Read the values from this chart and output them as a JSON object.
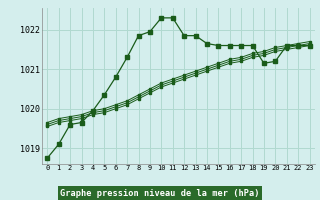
{
  "background_color": "#d4eeed",
  "grid_color": "#b0d9d0",
  "line_color": "#1a5c1a",
  "title": "Graphe pression niveau de la mer (hPa)",
  "title_bg": "#2d7a2d",
  "title_fg": "#ffffff",
  "xlim": [
    -0.5,
    23.5
  ],
  "ylim": [
    1018.6,
    1022.55
  ],
  "yticks": [
    1019,
    1020,
    1021,
    1022
  ],
  "xticks": [
    0,
    1,
    2,
    3,
    4,
    5,
    6,
    7,
    8,
    9,
    10,
    11,
    12,
    13,
    14,
    15,
    16,
    17,
    18,
    19,
    20,
    21,
    22,
    23
  ],
  "series": [
    [
      1018.75,
      1019.1,
      1019.6,
      1019.65,
      1019.95,
      1020.35,
      1020.8,
      1021.3,
      1021.85,
      1021.95,
      1022.3,
      1022.3,
      1021.85,
      1021.85,
      1021.65,
      1021.6,
      1021.6,
      1021.6,
      1021.6,
      1021.15,
      1021.2,
      1021.6,
      1021.6,
      1021.6
    ],
    [
      1019.55,
      1019.65,
      1019.7,
      1019.75,
      1019.85,
      1019.9,
      1020.0,
      1020.1,
      1020.25,
      1020.4,
      1020.55,
      1020.65,
      1020.75,
      1020.85,
      1020.95,
      1021.05,
      1021.15,
      1021.2,
      1021.3,
      1021.35,
      1021.45,
      1021.5,
      1021.55,
      1021.6
    ],
    [
      1019.6,
      1019.7,
      1019.75,
      1019.8,
      1019.9,
      1019.95,
      1020.05,
      1020.15,
      1020.3,
      1020.45,
      1020.6,
      1020.7,
      1020.8,
      1020.9,
      1021.0,
      1021.1,
      1021.2,
      1021.25,
      1021.35,
      1021.4,
      1021.5,
      1021.55,
      1021.6,
      1021.65
    ],
    [
      1019.65,
      1019.75,
      1019.8,
      1019.85,
      1019.95,
      1020.0,
      1020.1,
      1020.2,
      1020.35,
      1020.5,
      1020.65,
      1020.75,
      1020.85,
      1020.95,
      1021.05,
      1021.15,
      1021.25,
      1021.3,
      1021.4,
      1021.45,
      1021.55,
      1021.6,
      1021.65,
      1021.7
    ]
  ]
}
